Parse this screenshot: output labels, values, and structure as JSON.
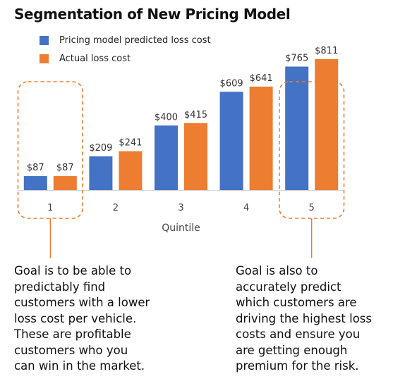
{
  "title": "Segmentation of New Pricing Model",
  "colors": {
    "predicted": "#4472C4",
    "actual": "#ED7D31",
    "highlight": "#ED7D31",
    "axis": "#d9d9d9"
  },
  "chart_data": {
    "type": "bar",
    "categories": [
      "1",
      "2",
      "3",
      "4",
      "5"
    ],
    "xlabel": "Quintile",
    "ylabel": "",
    "ylim": [
      0,
      900
    ],
    "grid": false,
    "legend_position": "top-left",
    "series": [
      {
        "name": "Pricing model predicted loss cost",
        "values": [
          87,
          209,
          400,
          609,
          765
        ],
        "labels": [
          "$87",
          "$209",
          "$400",
          "$609",
          "$765"
        ]
      },
      {
        "name": "Actual loss cost",
        "values": [
          87,
          241,
          415,
          641,
          811
        ],
        "labels": [
          "$87",
          "$241",
          "$415",
          "$641",
          "$811"
        ]
      }
    ],
    "highlighted_categories": [
      "1",
      "5"
    ]
  },
  "annotations": {
    "left": "Goal is to be able to\npredictably find\ncustomers with a lower\nloss cost per vehicle.\nThese are profitable\ncustomers who you\ncan win in the market.",
    "right": "Goal is also to\naccurately predict\nwhich customers are\ndriving the highest loss\ncosts and ensure you\nare getting enough\npremium for the risk."
  }
}
